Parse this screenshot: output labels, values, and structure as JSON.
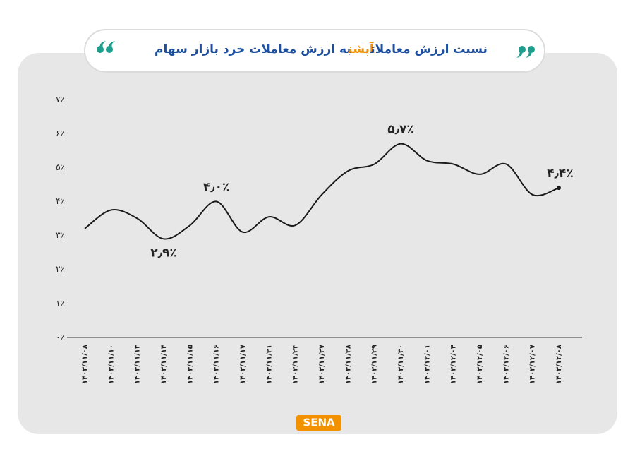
{
  "chart_data": {
    "type": "line",
    "title_parts": [
      "نسبت ارزش معاملات",
      "آپشن",
      "به ارزش معاملات خرد بازار سهام"
    ],
    "title_colors": [
      "#1d4fa0",
      "#f39200",
      "#1d4fa0"
    ],
    "logo": "SENA",
    "categories": [
      "۱۴۰۳/۱۱/۰۸",
      "۱۴۰۳/۱۱/۱۰",
      "۱۴۰۳/۱۱/۱۳",
      "۱۴۰۳/۱۱/۱۴",
      "۱۴۰۳/۱۱/۱۵",
      "۱۴۰۳/۱۱/۱۶",
      "۱۴۰۳/۱۱/۱۷",
      "۱۴۰۳/۱۱/۲۱",
      "۱۴۰۳/۱۱/۲۳",
      "۱۴۰۳/۱۱/۲۷",
      "۱۴۰۳/۱۱/۲۸",
      "۱۴۰۳/۱۱/۲۹",
      "۱۴۰۳/۱۱/۳۰",
      "۱۴۰۳/۱۲/۰۱",
      "۱۴۰۳/۱۲/۰۴",
      "۱۴۰۳/۱۲/۰۵",
      "۱۴۰۳/۱۲/۰۶",
      "۱۴۰۳/۱۲/۰۷",
      "۱۴۰۳/۱۲/۰۸"
    ],
    "values": [
      3.2,
      3.75,
      3.5,
      2.9,
      3.3,
      4.0,
      3.1,
      3.55,
      3.3,
      4.2,
      4.9,
      5.1,
      5.7,
      5.2,
      5.1,
      4.8,
      5.1,
      4.2,
      4.4
    ],
    "value_labels": [
      null,
      null,
      null,
      "۲٫۹٪",
      null,
      "۴٫۰٪",
      null,
      null,
      null,
      null,
      null,
      null,
      "۵٫۷٪",
      null,
      null,
      null,
      null,
      null,
      "۴٫۴٪"
    ],
    "color": "#1a1a1a",
    "ylim": [
      0,
      7
    ],
    "yticks": [
      {
        "value": 0,
        "label": "۰٪"
      },
      {
        "value": 1,
        "label": "۱٪"
      },
      {
        "value": 2,
        "label": "۲٪"
      },
      {
        "value": 3,
        "label": "۳٪"
      },
      {
        "value": 4,
        "label": "۴٪"
      },
      {
        "value": 5,
        "label": "۵٪"
      },
      {
        "value": 6,
        "label": "۶٪"
      },
      {
        "value": 7,
        "label": "۷٪"
      }
    ],
    "grid": false
  }
}
